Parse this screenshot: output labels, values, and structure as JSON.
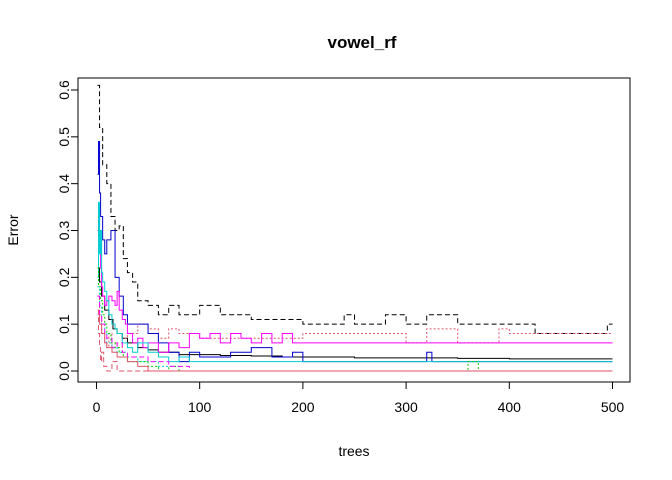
{
  "chart_data": {
    "type": "line",
    "title": "vowel_rf",
    "xlabel": "trees",
    "ylabel": "Error",
    "xlim": [
      1,
      500
    ],
    "ylim": [
      0,
      0.6
    ],
    "xticks": [
      0,
      100,
      200,
      300,
      400,
      500
    ],
    "yticks": [
      0.0,
      0.1,
      0.2,
      0.3,
      0.4,
      0.5,
      0.6
    ],
    "xtick_labels": [
      "0",
      "100",
      "200",
      "300",
      "400",
      "500"
    ],
    "ytick_labels": [
      "0.0",
      "0.1",
      "0.2",
      "0.3",
      "0.4",
      "0.5",
      "0.6"
    ],
    "grid": false,
    "legend": "none",
    "series": [
      {
        "color": "#000000",
        "dash": "",
        "x": [
          1,
          3,
          5,
          8,
          12,
          16,
          20,
          25,
          30,
          40,
          50,
          60,
          70,
          80,
          100,
          120,
          150,
          180,
          200,
          250,
          300,
          350,
          400,
          450,
          500
        ],
        "y": [
          0.22,
          0.19,
          0.16,
          0.13,
          0.11,
          0.09,
          0.08,
          0.07,
          0.06,
          0.05,
          0.045,
          0.04,
          0.04,
          0.035,
          0.035,
          0.033,
          0.032,
          0.03,
          0.03,
          0.028,
          0.028,
          0.027,
          0.026,
          0.026,
          0.026
        ]
      },
      {
        "color": "#000000",
        "dash": "5,3",
        "x": [
          1,
          3,
          6,
          10,
          14,
          18,
          22,
          26,
          30,
          35,
          40,
          50,
          60,
          70,
          80,
          90,
          100,
          120,
          150,
          200,
          230,
          240,
          250,
          260,
          280,
          300,
          320,
          350,
          400,
          420,
          425,
          430,
          450,
          480,
          490,
          495,
          500
        ],
        "y": [
          0.61,
          0.52,
          0.44,
          0.4,
          0.33,
          0.3,
          0.31,
          0.24,
          0.21,
          0.19,
          0.15,
          0.14,
          0.12,
          0.14,
          0.12,
          0.12,
          0.14,
          0.12,
          0.11,
          0.1,
          0.1,
          0.12,
          0.1,
          0.1,
          0.12,
          0.1,
          0.12,
          0.1,
          0.1,
          0.1,
          0.08,
          0.08,
          0.08,
          0.08,
          0.08,
          0.1,
          0.1
        ]
      },
      {
        "color": "#DF536B",
        "dash": "2,2",
        "x": [
          1,
          3,
          5,
          8,
          10,
          12,
          15,
          20,
          25,
          30,
          40,
          50,
          60,
          70,
          80,
          100,
          120,
          150,
          200,
          250,
          300,
          320,
          350,
          380,
          390,
          400,
          430,
          450,
          500
        ],
        "y": [
          0.16,
          0.12,
          0.08,
          0.06,
          0.05,
          0.08,
          0.06,
          0.05,
          0.07,
          0.08,
          0.1,
          0.09,
          0.07,
          0.09,
          0.08,
          0.07,
          0.07,
          0.07,
          0.08,
          0.08,
          0.06,
          0.09,
          0.06,
          0.06,
          0.09,
          0.08,
          0.08,
          0.08,
          0.08
        ]
      },
      {
        "color": "#DF536B",
        "dash": "5,3",
        "x": [
          1,
          2,
          3,
          4,
          5,
          7,
          10,
          15,
          20,
          500
        ],
        "y": [
          0.13,
          0.08,
          0.05,
          0.02,
          0.04,
          0.01,
          0.0,
          0.02,
          0.0,
          0.0
        ]
      },
      {
        "color": "#0000CD",
        "dash": "",
        "x": [
          1,
          2,
          3,
          4,
          6,
          8,
          10,
          14,
          18,
          22,
          26,
          30,
          40,
          50,
          60,
          70,
          80,
          90,
          100,
          110,
          130,
          150,
          170,
          190,
          200,
          250,
          300,
          320,
          325,
          330,
          350,
          360,
          400,
          450,
          500
        ],
        "y": [
          0.42,
          0.49,
          0.38,
          0.33,
          0.28,
          0.25,
          0.28,
          0.3,
          0.2,
          0.16,
          0.12,
          0.1,
          0.1,
          0.08,
          0.06,
          0.04,
          0.02,
          0.04,
          0.03,
          0.03,
          0.04,
          0.05,
          0.03,
          0.04,
          0.02,
          0.02,
          0.02,
          0.04,
          0.02,
          0.02,
          0.02,
          0.02,
          0.02,
          0.02,
          0.02
        ]
      },
      {
        "color": "#FF00FF",
        "dash": "",
        "x": [
          1,
          2,
          3,
          4,
          5,
          6,
          8,
          10,
          12,
          15,
          18,
          20,
          22,
          25,
          28,
          30,
          35,
          40,
          45,
          50,
          60,
          70,
          80,
          90,
          100,
          110,
          120,
          130,
          140,
          150,
          160,
          170,
          180,
          190,
          200,
          210,
          250,
          300,
          400,
          500
        ],
        "y": [
          0.3,
          0.34,
          0.27,
          0.22,
          0.18,
          0.16,
          0.14,
          0.15,
          0.16,
          0.15,
          0.14,
          0.17,
          0.13,
          0.11,
          0.1,
          0.08,
          0.06,
          0.07,
          0.05,
          0.06,
          0.04,
          0.06,
          0.05,
          0.08,
          0.07,
          0.08,
          0.06,
          0.08,
          0.07,
          0.06,
          0.08,
          0.06,
          0.08,
          0.06,
          0.06,
          0.06,
          0.06,
          0.06,
          0.06,
          0.06
        ]
      },
      {
        "color": "#00CED1",
        "dash": "",
        "x": [
          1,
          2,
          3,
          4,
          5,
          6,
          8,
          10,
          12,
          15,
          18,
          20,
          25,
          30,
          35,
          40,
          50,
          60,
          70,
          80,
          90,
          100,
          500
        ],
        "y": [
          0.2,
          0.36,
          0.25,
          0.3,
          0.21,
          0.19,
          0.17,
          0.15,
          0.12,
          0.1,
          0.09,
          0.08,
          0.06,
          0.05,
          0.04,
          0.06,
          0.04,
          0.03,
          0.02,
          0.03,
          0.02,
          0.02,
          0.02
        ]
      },
      {
        "color": "#00CED1",
        "dash": "2,2",
        "x": [
          1,
          3,
          5,
          8,
          10,
          15,
          20,
          30,
          40,
          60,
          80,
          100,
          500
        ],
        "y": [
          0.18,
          0.14,
          0.1,
          0.08,
          0.06,
          0.05,
          0.04,
          0.03,
          0.02,
          0.01,
          0.0,
          0.0,
          0.0
        ]
      },
      {
        "color": "#00CD00",
        "dash": "2,2",
        "x": [
          1,
          2,
          4,
          6,
          8,
          10,
          14,
          18,
          22,
          26,
          30,
          40,
          50,
          60,
          70,
          80,
          100,
          140,
          160,
          300,
          320,
          360,
          370,
          500
        ],
        "y": [
          0.22,
          0.18,
          0.15,
          0.12,
          0.1,
          0.08,
          0.06,
          0.05,
          0.04,
          0.03,
          0.02,
          0.02,
          0.01,
          0.0,
          0.01,
          0.0,
          0.0,
          0.0,
          0.0,
          0.0,
          0.0,
          0.02,
          0.0,
          0.0
        ]
      },
      {
        "color": "#FF00FF",
        "dash": "5,3",
        "x": [
          1,
          3,
          5,
          8,
          10,
          15,
          20,
          25,
          30,
          40,
          50,
          60,
          70,
          80,
          90,
          500
        ],
        "y": [
          0.16,
          0.12,
          0.1,
          0.08,
          0.07,
          0.05,
          0.06,
          0.04,
          0.03,
          0.03,
          0.02,
          0.02,
          0.01,
          0.01,
          0.0,
          0.0
        ]
      },
      {
        "color": "#DF536B",
        "dash": "",
        "x": [
          1,
          3,
          5,
          8,
          10,
          15,
          20,
          30,
          40,
          50,
          500
        ],
        "y": [
          0.12,
          0.1,
          0.08,
          0.06,
          0.05,
          0.04,
          0.03,
          0.02,
          0.01,
          0.0,
          0.0
        ]
      }
    ]
  }
}
